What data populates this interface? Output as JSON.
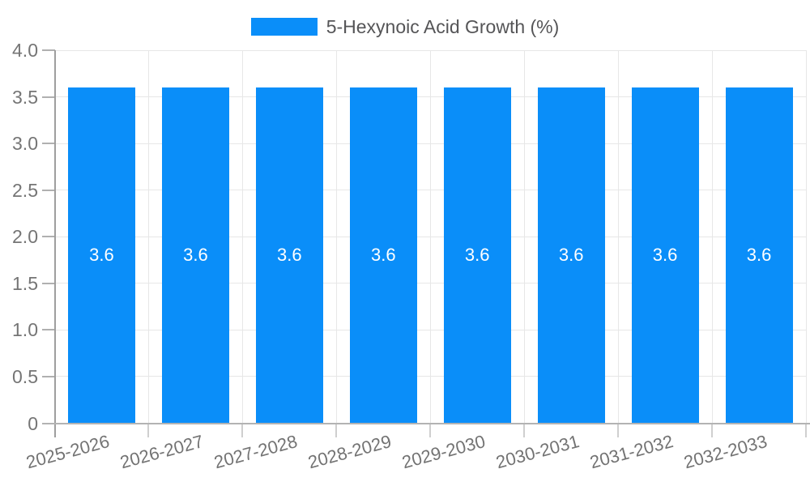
{
  "legend": {
    "label": "5-Hexynoic Acid Growth (%)"
  },
  "chart_data": {
    "type": "bar",
    "title": "5-Hexynoic Acid Growth (%)",
    "categories": [
      "2025-2026",
      "2026-2027",
      "2027-2028",
      "2028-2029",
      "2029-2030",
      "2030-2031",
      "2031-2032",
      "2032-2033"
    ],
    "series": [
      {
        "name": "5-Hexynoic Acid Growth (%)",
        "values": [
          3.6,
          3.6,
          3.6,
          3.6,
          3.6,
          3.6,
          3.6,
          3.6
        ]
      }
    ],
    "bar_value_labels": [
      "3.6",
      "3.6",
      "3.6",
      "3.6",
      "3.6",
      "3.6",
      "3.6",
      "3.6"
    ],
    "xlabel": "",
    "ylabel": "",
    "ylim": [
      0,
      4.0
    ],
    "yticks": [
      {
        "value": 0,
        "label": "0"
      },
      {
        "value": 0.5,
        "label": "0.5"
      },
      {
        "value": 1.0,
        "label": "1.0"
      },
      {
        "value": 1.5,
        "label": "1.5"
      },
      {
        "value": 2.0,
        "label": "2.0"
      },
      {
        "value": 2.5,
        "label": "2.5"
      },
      {
        "value": 3.0,
        "label": "3.0"
      },
      {
        "value": 3.5,
        "label": "3.5"
      },
      {
        "value": 4.0,
        "label": "4.0"
      }
    ],
    "grid": true,
    "legend_position": "top-center",
    "x_label_rotation_deg": -15,
    "colors": {
      "bar": "#0a8ef9",
      "value_label": "#ffffff",
      "tick_label": "#757575",
      "legend_text": "#555557",
      "gridline": "#e7e7e7",
      "y_axis_line": "#9e9e9e",
      "x_axis_line": "#b3b3b3"
    }
  }
}
